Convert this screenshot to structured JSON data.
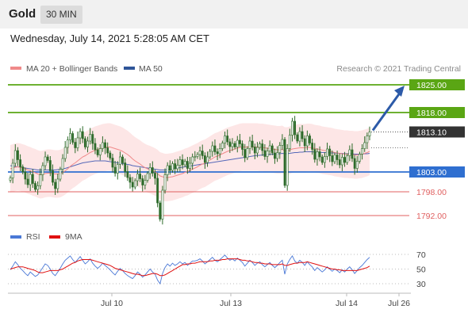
{
  "header": {
    "asset": "Gold",
    "timeframe": "30 MIN"
  },
  "timestamp": "Wednesday, July 14, 2021 5:28:05 AM CET",
  "legend": {
    "ma20_bollinger": "MA 20 + Bollinger Bands",
    "ma50": "MA 50",
    "credit": "Research © 2021 Trading Central",
    "rsi": "RSI",
    "ma9": "9MA"
  },
  "colors": {
    "resistance": "#5aa614",
    "pivot": "#2f6fd0",
    "support": "#e06060",
    "candle": "#2d6b2a",
    "ma20": "#f08a8a",
    "ma50": "#5568b8",
    "bollinger_fill": "#fde0e0",
    "rsi": "#4a78d6",
    "ma9": "#e01010",
    "arrow": "#2c5aa8",
    "last_price": "#333333"
  },
  "chart_data": [
    {
      "type": "candlestick",
      "x_ticks": [
        "Jul 10",
        "Jul 13",
        "Jul 14",
        "Jul 26"
      ],
      "ylim": [
        1789,
        1828
      ],
      "levels": [
        {
          "label": "1825.00",
          "value": 1825.0,
          "role": "resistance"
        },
        {
          "label": "1818.00",
          "value": 1818.0,
          "role": "resistance"
        },
        {
          "label": "1803.00",
          "value": 1803.0,
          "role": "pivot"
        },
        {
          "label": "1798.00",
          "value": 1798.0,
          "role": "support"
        },
        {
          "label": "1792.00",
          "value": 1792.0,
          "role": "support"
        }
      ],
      "last_price": {
        "label": "1813.10",
        "value": 1813.1
      },
      "projection": {
        "from": 1813.1,
        "to": 1825.0
      },
      "close": [
        1801.5,
        1805.2,
        1808.4,
        1806.1,
        1804.3,
        1803.0,
        1801.2,
        1799.8,
        1802.4,
        1800.1,
        1798.6,
        1799.5,
        1802.3,
        1804.6,
        1806.8,
        1805.9,
        1803.3,
        1800.4,
        1798.8,
        1801.2,
        1803.7,
        1806.4,
        1809.2,
        1811.1,
        1812.7,
        1810.5,
        1809.1,
        1811.6,
        1813.2,
        1811.4,
        1809.3,
        1810.8,
        1812.5,
        1810.2,
        1808.6,
        1807.3,
        1808.9,
        1810.4,
        1809.1,
        1807.8,
        1806.5,
        1804.2,
        1802.7,
        1804.9,
        1806.8,
        1805.3,
        1803.1,
        1801.6,
        1800.4,
        1799.2,
        1800.8,
        1802.5,
        1801.3,
        1799.7,
        1800.9,
        1802.6,
        1804.1,
        1802.7,
        1801.4,
        1795.2,
        1791.1,
        1798.4,
        1802.3,
        1804.6,
        1803.4,
        1805.1,
        1803.8,
        1804.7,
        1806.1,
        1804.8,
        1805.7,
        1803.9,
        1805.2,
        1806.8,
        1806.9,
        1807.4,
        1808.3,
        1807.1,
        1805.4,
        1806.8,
        1808.2,
        1809.6,
        1808.1,
        1807.6,
        1808.9,
        1810.3,
        1812.1,
        1810.6,
        1809.4,
        1810.2,
        1809.3,
        1811.0,
        1810.1,
        1808.7,
        1806.6,
        1808.9,
        1810.8,
        1809.3,
        1807.8,
        1809.2,
        1810.1,
        1808.4,
        1806.9,
        1808.3,
        1809.6,
        1807.8,
        1806.4,
        1807.9,
        1809.7,
        1811.2,
        1799.6,
        1808.9,
        1812.3,
        1815.8,
        1812.4,
        1810.8,
        1813.2,
        1811.4,
        1809.6,
        1812.1,
        1810.3,
        1808.7,
        1806.2,
        1808.1,
        1806.8,
        1805.4,
        1806.9,
        1808.8,
        1807.1,
        1805.6,
        1807.3,
        1806.1,
        1804.8,
        1806.7,
        1805.4,
        1807.1,
        1808.6,
        1806.4,
        1803.9,
        1805.7,
        1807.5,
        1808.9,
        1810.4,
        1812.1,
        1813.1
      ],
      "ma20": [
        1803.8,
        1804.0,
        1804.2,
        1804.3,
        1804.2,
        1804.0,
        1803.8,
        1803.5,
        1803.3,
        1803.0,
        1802.8,
        1802.5,
        1802.3,
        1802.4,
        1802.6,
        1802.7,
        1802.7,
        1802.6,
        1802.5,
        1802.5,
        1802.6,
        1802.9,
        1803.3,
        1803.8,
        1804.4,
        1804.9,
        1805.3,
        1805.8,
        1806.3,
        1806.8,
        1807.1,
        1807.5,
        1807.9,
        1808.2,
        1808.5,
        1808.7,
        1808.9,
        1809.1,
        1809.2,
        1809.3,
        1809.3,
        1809.1,
        1808.9,
        1808.7,
        1808.5,
        1808.2,
        1807.8,
        1807.4,
        1806.9,
        1806.3,
        1805.8,
        1805.4,
        1805.0,
        1804.5,
        1804.1,
        1803.8,
        1803.6,
        1803.3,
        1803.0,
        1802.6,
        1802.0,
        1801.8,
        1801.6,
        1801.6,
        1801.7,
        1801.8,
        1802.0,
        1802.2,
        1802.4,
        1802.6,
        1802.9,
        1803.1,
        1803.4,
        1803.7,
        1804.0,
        1804.3,
        1804.7,
        1805.0,
        1805.2,
        1805.6,
        1806.0,
        1806.4,
        1806.8,
        1807.0,
        1807.3,
        1807.6,
        1807.9,
        1808.2,
        1808.4,
        1808.6,
        1808.8,
        1809.0,
        1809.2,
        1809.3,
        1809.3,
        1809.3,
        1809.3,
        1809.3,
        1809.3,
        1809.3,
        1809.2,
        1809.2,
        1809.1,
        1809.0,
        1808.9,
        1808.8,
        1808.7,
        1808.6,
        1808.6,
        1808.7,
        1808.3,
        1808.3,
        1808.5,
        1808.8,
        1808.9,
        1809.0,
        1809.1,
        1809.1,
        1809.1,
        1809.2,
        1809.2,
        1809.1,
        1808.9,
        1808.8,
        1808.7,
        1808.5,
        1808.4,
        1808.3,
        1808.2,
        1808.1,
        1807.9,
        1807.8,
        1807.7,
        1807.6,
        1807.5,
        1807.5,
        1807.4,
        1807.4,
        1807.3,
        1807.3,
        1807.4,
        1807.5,
        1807.7,
        1807.9,
        1808.2
      ],
      "ma50": [
        1804.6,
        1804.5,
        1804.4,
        1804.3,
        1804.2,
        1804.1,
        1804.0,
        1803.9,
        1803.8,
        1803.7,
        1803.6,
        1803.5,
        1803.5,
        1803.5,
        1803.5,
        1803.5,
        1803.5,
        1803.5,
        1803.5,
        1803.6,
        1803.7,
        1803.8,
        1803.9,
        1804.1,
        1804.3,
        1804.5,
        1804.7,
        1804.9,
        1805.1,
        1805.3,
        1805.4,
        1805.5,
        1805.6,
        1805.7,
        1805.8,
        1805.8,
        1805.8,
        1805.8,
        1805.8,
        1805.7,
        1805.6,
        1805.5,
        1805.4,
        1805.3,
        1805.2,
        1805.1,
        1805.0,
        1804.9,
        1804.8,
        1804.6,
        1804.5,
        1804.4,
        1804.3,
        1804.2,
        1804.1,
        1804.0,
        1803.9,
        1803.8,
        1803.7,
        1803.6,
        1803.5,
        1803.5,
        1803.5,
        1803.6,
        1803.7,
        1803.8,
        1803.9,
        1804.0,
        1804.1,
        1804.2,
        1804.3,
        1804.4,
        1804.5,
        1804.6,
        1804.7,
        1804.8,
        1804.9,
        1805.0,
        1805.1,
        1805.2,
        1805.3,
        1805.4,
        1805.5,
        1805.6,
        1805.7,
        1805.8,
        1805.9,
        1806.0,
        1806.1,
        1806.2,
        1806.3,
        1806.4,
        1806.5,
        1806.6,
        1806.7,
        1806.8,
        1806.9,
        1807.0,
        1807.1,
        1807.2,
        1807.2,
        1807.3,
        1807.3,
        1807.4,
        1807.4,
        1807.5,
        1807.5,
        1807.6,
        1807.6,
        1807.7,
        1807.6,
        1807.6,
        1807.7,
        1807.8,
        1807.9,
        1807.9,
        1808.0,
        1808.0,
        1808.1,
        1808.1,
        1808.1,
        1808.1,
        1808.0,
        1808.0,
        1808.0,
        1807.9,
        1807.9,
        1807.9,
        1807.8,
        1807.8,
        1807.8,
        1807.7,
        1807.7,
        1807.7,
        1807.6,
        1807.6,
        1807.6,
        1807.6,
        1807.5,
        1807.5,
        1807.5,
        1807.5,
        1807.6,
        1807.6,
        1807.7
      ],
      "bollinger_width": 6.0
    },
    {
      "type": "line",
      "name": "RSI",
      "ylim": [
        20,
        80
      ],
      "y_ticks": [
        70,
        50,
        30
      ],
      "rsi": [
        49,
        54,
        60,
        56,
        51,
        48,
        44,
        41,
        46,
        43,
        40,
        42,
        47,
        52,
        57,
        55,
        50,
        44,
        41,
        46,
        51,
        57,
        62,
        65,
        68,
        63,
        59,
        63,
        67,
        62,
        57,
        60,
        64,
        58,
        54,
        51,
        54,
        58,
        55,
        52,
        49,
        45,
        42,
        47,
        51,
        48,
        44,
        41,
        39,
        37,
        41,
        46,
        43,
        39,
        42,
        46,
        50,
        46,
        43,
        35,
        30,
        44,
        52,
        57,
        54,
        58,
        55,
        57,
        60,
        57,
        59,
        55,
        58,
        61,
        61,
        62,
        64,
        61,
        57,
        60,
        63,
        66,
        62,
        60,
        63,
        66,
        69,
        65,
        62,
        64,
        61,
        65,
        62,
        59,
        54,
        58,
        62,
        59,
        55,
        58,
        60,
        56,
        53,
        56,
        59,
        55,
        52,
        55,
        59,
        62,
        43,
        57,
        63,
        68,
        61,
        58,
        62,
        59,
        55,
        60,
        56,
        53,
        48,
        52,
        49,
        46,
        49,
        53,
        50,
        47,
        50,
        48,
        45,
        49,
        46,
        50,
        53,
        49,
        44,
        48,
        52,
        55,
        59,
        63,
        66
      ],
      "ma9": [
        50,
        51,
        52,
        53,
        53,
        53,
        52,
        51,
        50,
        49,
        48,
        46,
        45,
        45,
        46,
        47,
        48,
        48,
        48,
        48,
        49,
        50,
        52,
        54,
        56,
        58,
        59,
        61,
        62,
        63,
        63,
        63,
        63,
        62,
        61,
        60,
        59,
        58,
        57,
        56,
        55,
        53,
        51,
        50,
        49,
        48,
        47,
        46,
        45,
        44,
        43,
        43,
        42,
        41,
        41,
        42,
        43,
        44,
        44,
        43,
        41,
        41,
        42,
        44,
        46,
        48,
        50,
        52,
        54,
        56,
        56,
        57,
        57,
        58,
        58,
        59,
        60,
        60,
        60,
        60,
        61,
        61,
        62,
        62,
        62,
        63,
        63,
        64,
        64,
        64,
        64,
        64,
        63,
        62,
        62,
        61,
        61,
        60,
        59,
        59,
        58,
        58,
        57,
        57,
        57,
        56,
        56,
        56,
        56,
        57,
        55,
        55,
        56,
        57,
        58,
        58,
        59,
        59,
        59,
        60,
        59,
        58,
        57,
        56,
        55,
        54,
        53,
        52,
        51,
        50,
        50,
        49,
        49,
        48,
        48,
        48,
        48,
        48,
        48,
        48,
        49,
        50,
        51,
        52,
        54
      ]
    }
  ]
}
